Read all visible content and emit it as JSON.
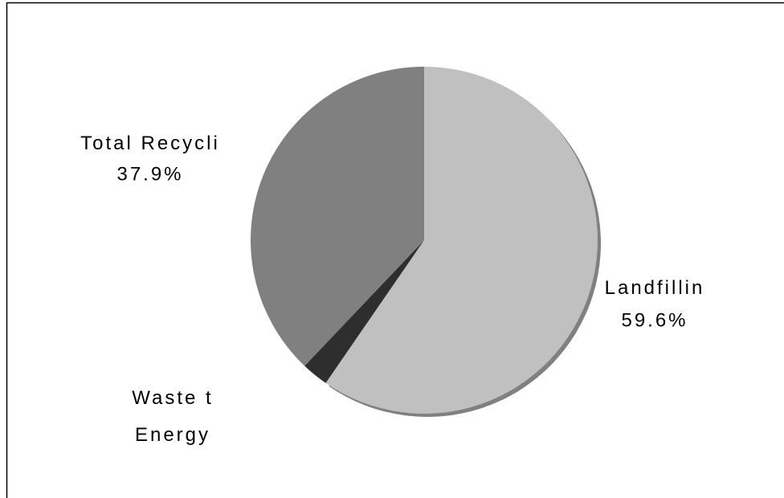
{
  "chart_data": {
    "type": "pie",
    "categories": [
      "Landfillin",
      "Waste t\nEnergy",
      "Total Recycli"
    ],
    "values": [
      59.6,
      2.5,
      37.9
    ],
    "value_labels": [
      "59.6%",
      null,
      "37.9%"
    ],
    "colors": [
      "#c0c0c0",
      "#2e2e2e",
      "#808080"
    ]
  }
}
